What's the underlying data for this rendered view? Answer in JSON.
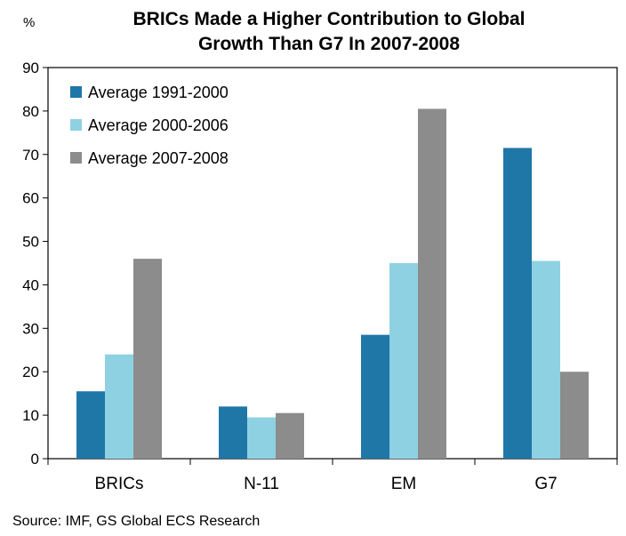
{
  "chart_data": {
    "type": "bar",
    "title_lines": [
      "BRICs Made a Higher Contribution to Global",
      "Growth Than G7 In 2007-2008"
    ],
    "unit_label": "%",
    "categories": [
      "BRICs",
      "N-11",
      "EM",
      "G7"
    ],
    "series": [
      {
        "name": "Average 1991-2000",
        "color": "#1f77a8",
        "values": [
          15.5,
          12,
          28.5,
          71.5
        ]
      },
      {
        "name": "Average 2000-2006",
        "color": "#8ed1e2",
        "values": [
          24,
          9.5,
          45,
          45.5
        ]
      },
      {
        "name": "Average 2007-2008",
        "color": "#8c8c8c",
        "values": [
          46,
          10.5,
          80.5,
          20
        ]
      }
    ],
    "ylim": [
      0,
      90
    ],
    "yticks": [
      0,
      10,
      20,
      30,
      40,
      50,
      60,
      70,
      80,
      90
    ],
    "grid": false,
    "legend_position": "top-left",
    "source": "Source: IMF, GS Global ECS Research"
  }
}
